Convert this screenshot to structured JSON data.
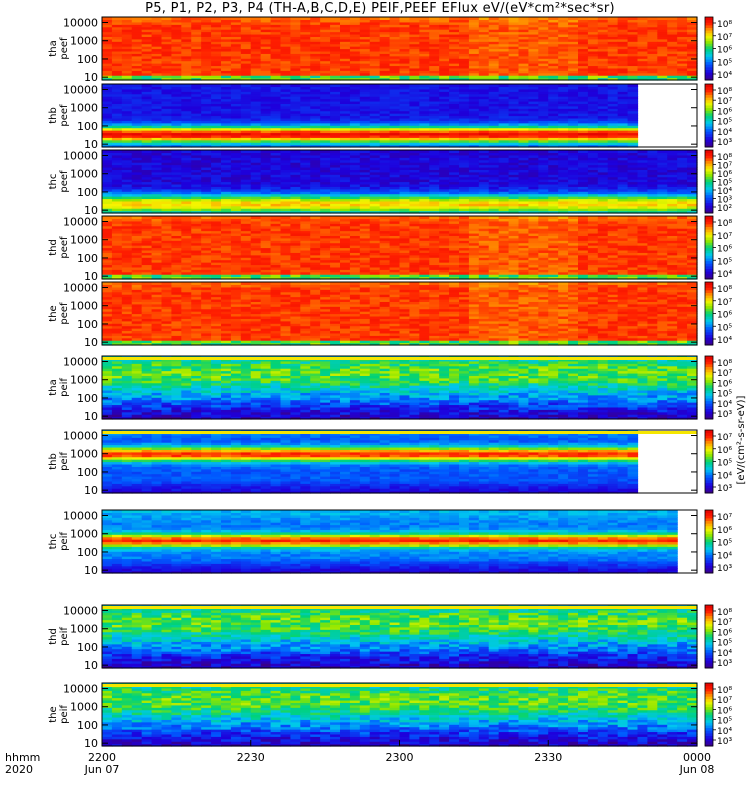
{
  "title": "P5, P1, P2, P3, P4 (TH-A,B,C,D,E) PEIF,PEEF EFlux eV/(eV*cm²*sec*sr)",
  "chart_data": {
    "type": "heatmap",
    "title": "P5, P1, P2, P3, P4 (TH-A,B,C,D,E) PEIF,PEEF EFlux eV/(eV*cm²*sec*sr)",
    "x_axis": {
      "row_labels": [
        "hhmm",
        "2020"
      ],
      "ticks": [
        {
          "top": "2200",
          "bottom": "Jun 07"
        },
        {
          "top": "2230",
          "bottom": ""
        },
        {
          "top": "2300",
          "bottom": ""
        },
        {
          "top": "2330",
          "bottom": ""
        },
        {
          "top": "0000",
          "bottom": "Jun 08"
        }
      ],
      "range": [
        "2020-06-07 22:00",
        "2020-06-08 00:00"
      ]
    },
    "y_axis": {
      "scale": "log",
      "range": [
        7,
        20000
      ],
      "ticks": [
        "10",
        "100",
        "1000",
        "10000"
      ]
    },
    "colorbar_label": "[eV/(cm²-s-sr-eV)]",
    "panels": [
      {
        "label": [
          "tha",
          "peef"
        ],
        "cb_ticks": [
          "10⁸",
          "10⁷",
          "10⁶",
          "10⁵",
          "10⁴"
        ],
        "cmin": 5,
        "cmax": 8.7,
        "style": "hot",
        "white_from": null,
        "yellow_line": false
      },
      {
        "label": [
          "thb",
          "peef"
        ],
        "cb_ticks": [
          "10⁸",
          "10⁷",
          "10⁶",
          "10⁵",
          "10⁴",
          "10³"
        ],
        "cmin": 2.6,
        "cmax": 8.5,
        "style": "band_low",
        "white_from": 0.895,
        "yellow_line": false
      },
      {
        "label": [
          "thc",
          "peef"
        ],
        "cb_ticks": [
          "10⁸",
          "10⁷",
          "10⁶",
          "10⁵",
          "10⁴",
          "10³",
          "10²"
        ],
        "cmin": 2,
        "cmax": 8.3,
        "style": "cold_low",
        "white_from": null,
        "yellow_line": false
      },
      {
        "label": [
          "thd",
          "peef"
        ],
        "cb_ticks": [
          "10⁸",
          "10⁷",
          "10⁶",
          "10⁵",
          "10⁴"
        ],
        "cmin": 3.8,
        "cmax": 8.4,
        "style": "hot",
        "white_from": null,
        "yellow_line": false
      },
      {
        "label": [
          "the",
          "peef"
        ],
        "cb_ticks": [
          "10⁸",
          "10⁷",
          "10⁶",
          "10⁵",
          "10⁴"
        ],
        "cmin": 3.8,
        "cmax": 8.4,
        "style": "hot",
        "white_from": null,
        "yellow_line": false
      },
      {
        "label": [
          "tha",
          "peif"
        ],
        "cb_ticks": [
          "10⁸",
          "10⁷",
          "10⁶",
          "10⁵",
          "10⁴",
          "10³"
        ],
        "cmin": 3,
        "cmax": 8.3,
        "style": "ion",
        "white_from": null,
        "yellow_line": true
      },
      {
        "label": [
          "thb",
          "peif"
        ],
        "cb_ticks": [
          "10⁷",
          "10⁶",
          "10⁵",
          "10⁴",
          "10³"
        ],
        "cmin": 2.7,
        "cmax": 7.6,
        "style": "band_mid",
        "white_from": 0.895,
        "yellow_line": true
      },
      {
        "label": [
          "thc",
          "peif"
        ],
        "cb_ticks": [
          "10⁷",
          "10⁶",
          "10⁵",
          "10⁴",
          "10³"
        ],
        "cmin": 2.7,
        "cmax": 7.5,
        "style": "band_mid2",
        "white_from": 0.97,
        "yellow_line": false
      },
      {
        "label": [
          "thd",
          "peif"
        ],
        "cb_ticks": [
          "10⁸",
          "10⁷",
          "10⁶",
          "10⁵",
          "10⁴",
          "10³"
        ],
        "cmin": 2.8,
        "cmax": 8.4,
        "style": "ion",
        "white_from": null,
        "yellow_line": true
      },
      {
        "label": [
          "the",
          "peif"
        ],
        "cb_ticks": [
          "10⁸",
          "10⁷",
          "10⁶",
          "10⁵",
          "10⁴",
          "10³"
        ],
        "cmin": 2.8,
        "cmax": 8.4,
        "style": "ion",
        "white_from": null,
        "yellow_line": true
      }
    ]
  }
}
